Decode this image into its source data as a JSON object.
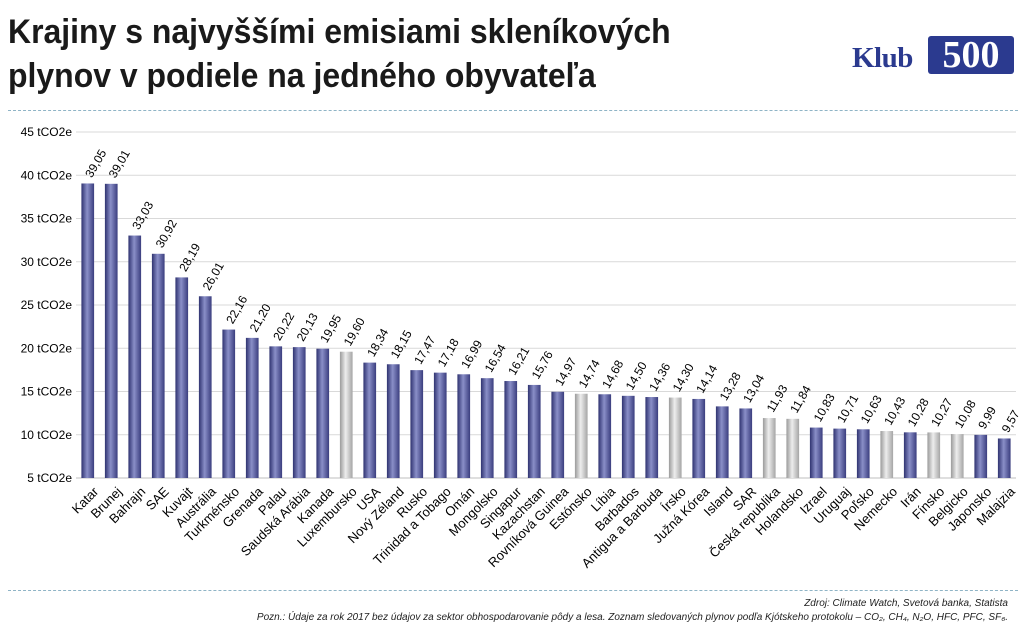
{
  "header": {
    "title_line1": "Krajiny s najvyššími emisiami skleníkových",
    "title_line2": "plynov v podiele na jedného obyvateľa",
    "logo_word": "Klub",
    "logo_number": "500",
    "logo_color": "#2b3a8f"
  },
  "footer": {
    "source": "Zdroj: Climate Watch, Svetová banka, Statista",
    "note": "Pozn.: Údaje za rok 2017 bez údajov za sektor obhospodarovanie pôdy a lesa. Zoznam sledovaných plynov podľa Kjótskeho protokolu – CO₂, CH₄, N₂O, HFC, PFC, SF₆."
  },
  "chart_data": {
    "type": "bar",
    "title": "Krajiny s najvyššími emisiami skleníkových plynov v podiele na jedného obyvateľa",
    "xlabel": "",
    "ylabel": "",
    "ylim": [
      5,
      45
    ],
    "yticks": [
      "5 tCO2e",
      "10 tCO2e",
      "15 tCO2e",
      "20 tCO2e",
      "25 tCO2e",
      "30 tCO2e",
      "35 tCO2e",
      "40 tCO2e",
      "45 tCO2e"
    ],
    "ytick_values": [
      5,
      10,
      15,
      20,
      25,
      30,
      35,
      40,
      45
    ],
    "grid": true,
    "colors": {
      "default": "#4a4f8c",
      "highlight": "#c8c8c8"
    },
    "categories": [
      "Katar",
      "Brunej",
      "Bahrajn",
      "SAE",
      "Kuvajt",
      "Austrália",
      "Turkménsko",
      "Grenada",
      "Palau",
      "Saudská Arábia",
      "Kanada",
      "Luxembursko",
      "USA",
      "Nový Zéland",
      "Rusko",
      "Trinidad a Tobago",
      "Omán",
      "Mongolsko",
      "Singapur",
      "Kazachstan",
      "Rovníková Guinea",
      "Estónsko",
      "Líbia",
      "Barbados",
      "Antigua a Barbuda",
      "Írsko",
      "Južná Kórea",
      "Island",
      "SAR",
      "Česká republika",
      "Holandsko",
      "Izrael",
      "Uruguaj",
      "Poľsko",
      "Nemecko",
      "Irán",
      "Fínsko",
      "Belgicko",
      "Japonsko",
      "Malajzia"
    ],
    "values": [
      39.05,
      39.01,
      33.03,
      30.92,
      28.19,
      26.01,
      22.16,
      21.2,
      20.22,
      20.13,
      19.95,
      19.6,
      18.34,
      18.15,
      17.47,
      17.18,
      16.99,
      16.54,
      16.21,
      15.76,
      14.97,
      14.74,
      14.68,
      14.5,
      14.36,
      14.3,
      14.14,
      13.28,
      13.04,
      11.93,
      11.84,
      10.83,
      10.71,
      10.63,
      10.43,
      10.28,
      10.27,
      10.08,
      9.99,
      9.57
    ],
    "labels": [
      "39,05",
      "39,01",
      "33,03",
      "30,92",
      "28,19",
      "26,01",
      "22,16",
      "21,20",
      "20,22",
      "20,13",
      "19,95",
      "19,60",
      "18,34",
      "18,15",
      "17,47",
      "17,18",
      "16,99",
      "16,54",
      "16,21",
      "15,76",
      "14,97",
      "14,74",
      "14,68",
      "14,50",
      "14,36",
      "14,30",
      "14,14",
      "13,28",
      "13,04",
      "11,93",
      "11,84",
      "10,83",
      "10,71",
      "10,63",
      "10,43",
      "10,28",
      "10,27",
      "10,08",
      "9,99",
      "9,57"
    ],
    "highlighted": [
      false,
      false,
      false,
      false,
      false,
      false,
      false,
      false,
      false,
      false,
      false,
      true,
      false,
      false,
      false,
      false,
      false,
      false,
      false,
      false,
      false,
      true,
      false,
      false,
      false,
      true,
      false,
      false,
      false,
      true,
      true,
      false,
      false,
      false,
      true,
      false,
      true,
      true,
      false,
      false
    ]
  }
}
